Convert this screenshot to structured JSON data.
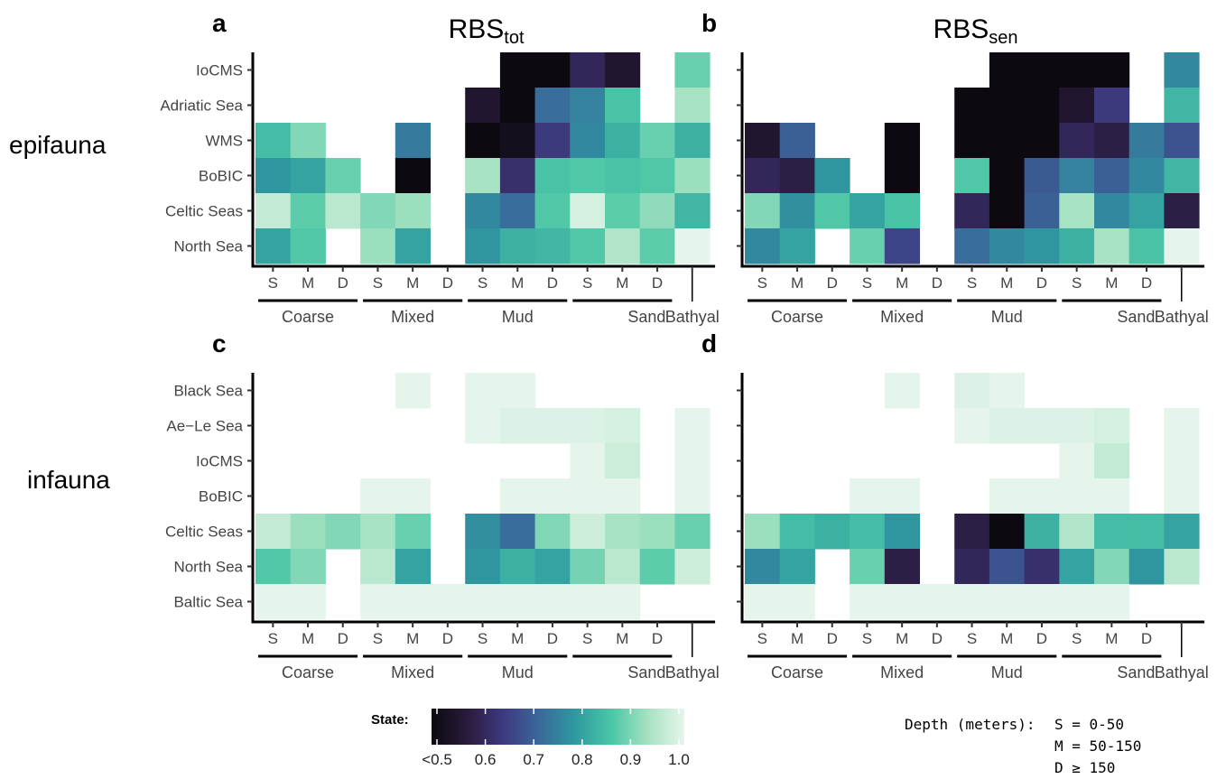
{
  "chart_data": {
    "type": "heatmap",
    "color_scale": {
      "title": "State:",
      "domain": [
        0.5,
        1.0
      ],
      "ticks": [
        "<0.5",
        "0.6",
        "0.7",
        "0.8",
        "0.9",
        "1.0"
      ],
      "stops": [
        "#0c0a10",
        "#2a1b3d",
        "#3d3a80",
        "#3a6a9c",
        "#2e9aa0",
        "#4cc7a6",
        "#a6e2c2",
        "#e6f5ec"
      ]
    },
    "x_columns": [
      "S",
      "M",
      "D",
      "S",
      "M",
      "D",
      "S",
      "M",
      "D",
      "S",
      "M",
      "D",
      ""
    ],
    "x_groups": [
      {
        "label": "Coarse"
      },
      {
        "label": "Mixed"
      },
      {
        "label": "Mud"
      },
      {
        "label": "Sand"
      },
      {
        "label": "Bathyal"
      }
    ],
    "depth_note": {
      "title": "Depth (meters):",
      "lines": [
        "S = 0-50",
        "M = 50-150",
        "D ≥ 150"
      ]
    },
    "rows": [
      {
        "label": "epifauna",
        "regions": [
          "IoCMS",
          "Adriatic Sea",
          "WMS",
          "BoBIC",
          "Celtic Seas",
          "North Sea"
        ],
        "panels": [
          {
            "letter": "a",
            "title": "RBS",
            "title_sub": "tot",
            "values": [
              [
                null,
                null,
                null,
                null,
                null,
                null,
                null,
                0.5,
                0.5,
                0.6,
                0.55,
                null,
                0.88
              ],
              [
                null,
                null,
                null,
                null,
                null,
                null,
                0.55,
                0.5,
                0.72,
                0.75,
                0.85,
                null,
                0.93
              ],
              [
                0.84,
                0.9,
                null,
                null,
                0.74,
                null,
                0.5,
                0.52,
                0.64,
                0.76,
                0.82,
                0.88,
                0.82
              ],
              [
                0.78,
                0.8,
                0.88,
                null,
                0.5,
                null,
                0.93,
                0.62,
                0.85,
                0.86,
                0.85,
                0.86,
                0.92
              ],
              [
                0.96,
                0.87,
                0.95,
                0.9,
                0.92,
                null,
                0.76,
                0.72,
                0.86,
                0.98,
                0.87,
                0.91,
                0.83
              ],
              [
                0.8,
                0.86,
                null,
                0.92,
                0.8,
                null,
                0.78,
                0.82,
                0.83,
                0.86,
                0.94,
                0.87,
                1.0
              ]
            ]
          },
          {
            "letter": "b",
            "title": "RBS",
            "title_sub": "sen",
            "values": [
              [
                null,
                null,
                null,
                null,
                null,
                null,
                null,
                0.5,
                0.5,
                0.5,
                0.5,
                null,
                0.76
              ],
              [
                null,
                null,
                null,
                null,
                null,
                null,
                0.5,
                0.5,
                0.5,
                0.55,
                0.64,
                null,
                0.83
              ],
              [
                0.55,
                0.7,
                null,
                null,
                0.5,
                null,
                0.5,
                0.5,
                0.5,
                0.6,
                0.58,
                0.74,
                0.68
              ],
              [
                0.6,
                0.58,
                0.78,
                null,
                0.5,
                null,
                0.86,
                0.5,
                0.69,
                0.75,
                0.7,
                0.76,
                0.83
              ],
              [
                0.9,
                0.77,
                0.86,
                0.8,
                0.85,
                null,
                0.6,
                0.5,
                0.7,
                0.93,
                0.76,
                0.8,
                0.58
              ],
              [
                0.76,
                0.8,
                null,
                0.88,
                0.66,
                null,
                0.72,
                0.76,
                0.78,
                0.82,
                0.93,
                0.85,
                1.0
              ]
            ]
          }
        ]
      },
      {
        "label": "infauna",
        "regions": [
          "Black Sea",
          "Ae−Le Sea",
          "IoCMS",
          "BoBIC",
          "Celtic Seas",
          "North Sea",
          "Baltic Sea"
        ],
        "panels": [
          {
            "letter": "c",
            "title": "",
            "title_sub": "",
            "values": [
              [
                null,
                null,
                null,
                null,
                1.0,
                null,
                1.0,
                1.0,
                null,
                null,
                null,
                null,
                null
              ],
              [
                null,
                null,
                null,
                null,
                null,
                null,
                1.0,
                0.99,
                0.99,
                0.99,
                0.98,
                null,
                1.0
              ],
              [
                null,
                null,
                null,
                null,
                null,
                null,
                null,
                null,
                null,
                1.0,
                0.97,
                null,
                1.0
              ],
              [
                null,
                null,
                null,
                1.0,
                1.0,
                null,
                null,
                1.0,
                1.0,
                1.0,
                1.0,
                null,
                1.0
              ],
              [
                0.96,
                0.92,
                0.9,
                0.93,
                0.88,
                null,
                0.77,
                0.72,
                0.9,
                0.97,
                0.93,
                0.92,
                0.88
              ],
              [
                0.86,
                0.9,
                null,
                0.95,
                0.8,
                null,
                0.78,
                0.82,
                0.8,
                0.89,
                0.95,
                0.87,
                0.97
              ],
              [
                1.0,
                1.0,
                null,
                1.0,
                1.0,
                1.0,
                1.0,
                1.0,
                1.0,
                1.0,
                1.0,
                null,
                null
              ]
            ]
          },
          {
            "letter": "d",
            "title": "",
            "title_sub": "",
            "values": [
              [
                null,
                null,
                null,
                null,
                1.0,
                null,
                0.99,
                1.0,
                null,
                null,
                null,
                null,
                null
              ],
              [
                null,
                null,
                null,
                null,
                null,
                null,
                1.0,
                0.99,
                0.99,
                0.99,
                0.98,
                null,
                1.0
              ],
              [
                null,
                null,
                null,
                null,
                null,
                null,
                null,
                null,
                null,
                1.0,
                0.96,
                null,
                1.0
              ],
              [
                null,
                null,
                null,
                1.0,
                1.0,
                null,
                null,
                1.0,
                1.0,
                1.0,
                1.0,
                null,
                1.0
              ],
              [
                0.92,
                0.84,
                0.82,
                0.84,
                0.78,
                null,
                0.58,
                0.5,
                0.82,
                0.94,
                0.84,
                0.84,
                0.8
              ],
              [
                0.76,
                0.8,
                null,
                0.88,
                0.58,
                null,
                0.6,
                0.68,
                0.62,
                0.8,
                0.9,
                0.78,
                0.95
              ],
              [
                1.0,
                1.0,
                null,
                1.0,
                1.0,
                1.0,
                1.0,
                1.0,
                1.0,
                1.0,
                1.0,
                null,
                null
              ]
            ]
          }
        ]
      }
    ]
  }
}
